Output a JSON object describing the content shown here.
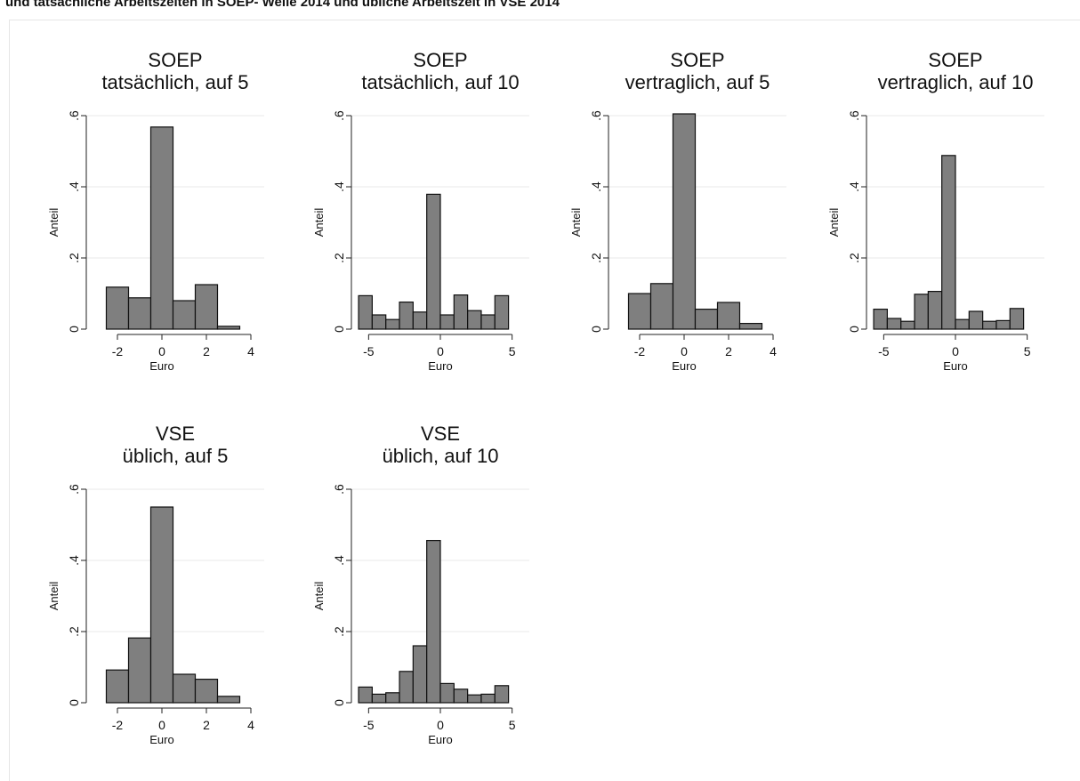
{
  "header": {
    "text": "und tatsächliche Arbeitszeiten in SOEP- Welle 2014 und übliche Arbeitszeit in VSE 2014"
  },
  "colors": {
    "bar_fill": "#7f7f7f",
    "bar_stroke": "#111111",
    "grid": "#e8e8e8",
    "axis": "#222222"
  },
  "chart_data": [
    {
      "type": "bar",
      "title": [
        "SOEP",
        "tatsächlich, auf 5"
      ],
      "xlabel": "Euro",
      "ylabel": "Anteil",
      "xlim": [
        -3.4,
        4.6
      ],
      "ylim": [
        0,
        0.6
      ],
      "xticks": [
        -2,
        0,
        2,
        4
      ],
      "xtick_labels": [
        "-2",
        "0",
        "2",
        "4"
      ],
      "yticks": [
        0,
        0.2,
        0.4,
        0.6
      ],
      "ytick_labels": [
        "0",
        ".2",
        ".4",
        ".6"
      ],
      "grid": true,
      "bin_width": 1,
      "bins": [
        -2.5,
        -1.5,
        -0.5,
        0.5,
        1.5,
        2.5
      ],
      "values": [
        0.118,
        0.088,
        0.568,
        0.08,
        0.125,
        0.008
      ]
    },
    {
      "type": "bar",
      "title": [
        "SOEP",
        "tatsächlich, auf 10"
      ],
      "xlabel": "Euro",
      "ylabel": "Anteil",
      "xlim": [
        -6.2,
        6.2
      ],
      "ylim": [
        0,
        0.6
      ],
      "xticks": [
        -5,
        0,
        5
      ],
      "xtick_labels": [
        "-5",
        "0",
        "5"
      ],
      "yticks": [
        0,
        0.2,
        0.4,
        0.6
      ],
      "ytick_labels": [
        "0",
        ".2",
        ".4",
        ".6"
      ],
      "grid": true,
      "bin_width": 0.95,
      "bins": [
        -5.7,
        -4.75,
        -3.8,
        -2.85,
        -1.9,
        -0.95,
        0,
        0.95,
        1.9,
        2.85,
        3.8,
        4.75
      ],
      "values": [
        0.094,
        0.04,
        0.027,
        0.076,
        0.048,
        0.379,
        0.04,
        0.096,
        0.052,
        0.04,
        0.094,
        0
      ]
    },
    {
      "type": "bar",
      "title": [
        "SOEP",
        "vertraglich, auf 5"
      ],
      "xlabel": "Euro",
      "ylabel": "Anteil",
      "xlim": [
        -3.4,
        4.6
      ],
      "ylim": [
        0,
        0.6
      ],
      "xticks": [
        -2,
        0,
        2,
        4
      ],
      "xtick_labels": [
        "-2",
        "0",
        "2",
        "4"
      ],
      "yticks": [
        0,
        0.2,
        0.4,
        0.6
      ],
      "ytick_labels": [
        "0",
        ".2",
        ".4",
        ".6"
      ],
      "grid": true,
      "bin_width": 1,
      "bins": [
        -2.5,
        -1.5,
        -0.5,
        0.5,
        1.5,
        2.5
      ],
      "values": [
        0.1,
        0.128,
        0.605,
        0.056,
        0.075,
        0.016
      ]
    },
    {
      "type": "bar",
      "title": [
        "SOEP",
        "vertraglich, auf 10"
      ],
      "xlabel": "Euro",
      "ylabel": "Anteil",
      "xlim": [
        -6.2,
        6.2
      ],
      "ylim": [
        0,
        0.6
      ],
      "xticks": [
        -5,
        0,
        5
      ],
      "xtick_labels": [
        "-5",
        "0",
        "5"
      ],
      "yticks": [
        0,
        0.2,
        0.4,
        0.6
      ],
      "ytick_labels": [
        "0",
        ".2",
        ".4",
        ".6"
      ],
      "grid": true,
      "bin_width": 0.95,
      "bins": [
        -5.7,
        -4.75,
        -3.8,
        -2.85,
        -1.9,
        -0.95,
        0,
        0.95,
        1.9,
        2.85,
        3.8,
        4.75
      ],
      "values": [
        0.056,
        0.03,
        0.022,
        0.098,
        0.106,
        0.488,
        0.027,
        0.05,
        0.022,
        0.024,
        0.058,
        0
      ]
    },
    {
      "type": "bar",
      "title": [
        "VSE",
        "üblich, auf 5"
      ],
      "xlabel": "Euro",
      "ylabel": "Anteil",
      "xlim": [
        -3.4,
        4.6
      ],
      "ylim": [
        0,
        0.6
      ],
      "xticks": [
        -2,
        0,
        2,
        4
      ],
      "xtick_labels": [
        "-2",
        "0",
        "2",
        "4"
      ],
      "yticks": [
        0,
        0.2,
        0.4,
        0.6
      ],
      "ytick_labels": [
        "0",
        ".2",
        ".4",
        ".6"
      ],
      "grid": true,
      "bin_width": 1,
      "bins": [
        -2.5,
        -1.5,
        -0.5,
        0.5,
        1.5,
        2.5
      ],
      "values": [
        0.092,
        0.182,
        0.55,
        0.08,
        0.066,
        0.018
      ]
    },
    {
      "type": "bar",
      "title": [
        "VSE",
        "üblich, auf 10"
      ],
      "xlabel": "Euro",
      "ylabel": "Anteil",
      "xlim": [
        -6.2,
        6.2
      ],
      "ylim": [
        0,
        0.6
      ],
      "xticks": [
        -5,
        0,
        5
      ],
      "xtick_labels": [
        "-5",
        "0",
        "5"
      ],
      "yticks": [
        0,
        0.2,
        0.4,
        0.6
      ],
      "ytick_labels": [
        "0",
        ".2",
        ".4",
        ".6"
      ],
      "grid": true,
      "bin_width": 0.95,
      "bins": [
        -5.7,
        -4.75,
        -3.8,
        -2.85,
        -1.9,
        -0.95,
        0,
        0.95,
        1.9,
        2.85,
        3.8,
        4.75
      ],
      "values": [
        0.044,
        0.024,
        0.028,
        0.088,
        0.16,
        0.456,
        0.054,
        0.038,
        0.022,
        0.024,
        0.048,
        0
      ]
    }
  ]
}
